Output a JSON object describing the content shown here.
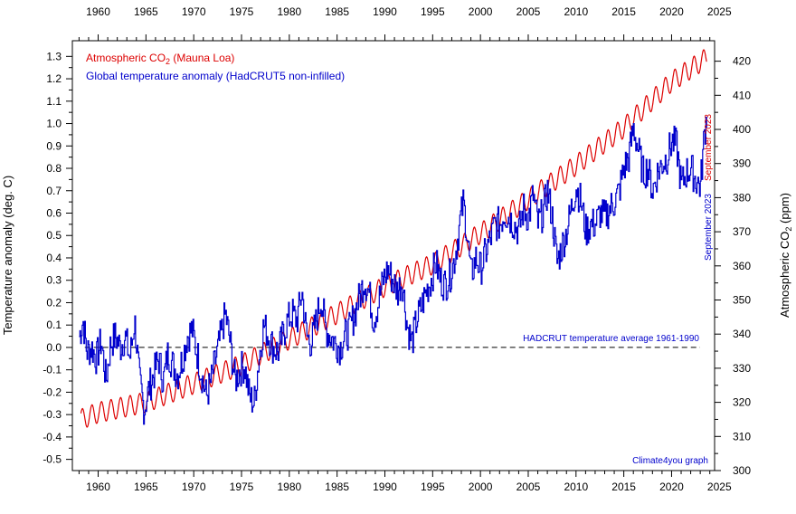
{
  "chart_data": {
    "type": "line",
    "title": "",
    "legend": [
      {
        "label_main": "Atmospheric CO",
        "label_sub": "2",
        "label_tail": " (Mauna Loa)",
        "color": "#dd0000"
      },
      {
        "label_main": "Global temperature anomaly (HadCRUT5 non-infilled)",
        "label_sub": "",
        "label_tail": "",
        "color": "#0000cc"
      }
    ],
    "left_ylabel": "Temperature anomaly (deg. C)",
    "right_ylabel_main": "Atmospheric CO",
    "right_ylabel_sub": "2",
    "right_ylabel_tail": " (ppm)",
    "xlim": [
      1957.3,
      2024.5
    ],
    "left_ylim": [
      -0.55,
      1.37
    ],
    "right_ylim": [
      300,
      426
    ],
    "x_ticks": [
      "1960",
      "1965",
      "1970",
      "1975",
      "1980",
      "1985",
      "1990",
      "1995",
      "2000",
      "2005",
      "2010",
      "2015",
      "2020",
      "2025"
    ],
    "left_ticks": [
      "-0.5",
      "-0.4",
      "-0.3",
      "-0.2",
      "-0.1",
      "0.0",
      "0.1",
      "0.2",
      "0.3",
      "0.4",
      "0.5",
      "0.6",
      "0.7",
      "0.8",
      "0.9",
      "1.0",
      "1.1",
      "1.2",
      "1.3"
    ],
    "right_ticks": [
      "300",
      "310",
      "320",
      "330",
      "340",
      "350",
      "360",
      "370",
      "380",
      "390",
      "400",
      "410",
      "420"
    ],
    "reference_line": {
      "value": 0.0,
      "label": "HADCRUT temperature average 1961-1990",
      "color": "#0000cc"
    },
    "annotations": {
      "co2_date": "September 2023",
      "temp_date": "September 2023",
      "credit": "Climate4you graph"
    },
    "series": [
      {
        "name": "Atmospheric CO2 (Mauna Loa)",
        "color": "#dd0000",
        "axis": "right",
        "seasonal_amplitude": 3.0,
        "x": [
          1958.2,
          1960,
          1965,
          1970,
          1975,
          1980,
          1985,
          1990,
          1995,
          2000,
          2005,
          2010,
          2015,
          2020,
          2023.7
        ],
        "values": [
          315,
          317,
          320,
          325.5,
          331,
          338.5,
          346,
          354,
          360.5,
          369.5,
          379.5,
          389.5,
          400.5,
          414,
          421
        ]
      },
      {
        "name": "Global temperature anomaly (HadCRUT5 non-infilled)",
        "color": "#0000cc",
        "axis": "left",
        "x": [
          1958.0,
          1958.4,
          1958.8,
          1959.3,
          1959.8,
          1960.3,
          1960.8,
          1961.3,
          1961.8,
          1962.3,
          1962.8,
          1963.3,
          1963.8,
          1964.3,
          1964.8,
          1965.3,
          1965.8,
          1966.3,
          1966.8,
          1967.3,
          1967.8,
          1968.3,
          1968.8,
          1969.3,
          1969.8,
          1970.3,
          1970.8,
          1971.3,
          1971.8,
          1972.3,
          1972.8,
          1973.3,
          1973.8,
          1974.3,
          1974.8,
          1975.3,
          1975.8,
          1976.3,
          1976.8,
          1977.3,
          1977.8,
          1978.3,
          1978.8,
          1979.3,
          1979.8,
          1980.3,
          1980.8,
          1981.3,
          1981.8,
          1982.3,
          1982.8,
          1983.3,
          1983.8,
          1984.3,
          1984.8,
          1985.3,
          1985.8,
          1986.3,
          1986.8,
          1987.3,
          1987.8,
          1988.3,
          1988.8,
          1989.3,
          1989.8,
          1990.3,
          1990.8,
          1991.3,
          1991.8,
          1992.3,
          1992.8,
          1993.3,
          1993.8,
          1994.3,
          1994.8,
          1995.3,
          1995.8,
          1996.3,
          1996.8,
          1997.3,
          1997.8,
          1998.2,
          1998.6,
          1999.0,
          1999.5,
          2000.0,
          2000.5,
          2001.0,
          2001.5,
          2002.0,
          2002.5,
          2003.0,
          2003.5,
          2004.0,
          2004.5,
          2005.0,
          2005.5,
          2006.0,
          2006.5,
          2007.0,
          2007.5,
          2008.0,
          2008.5,
          2009.0,
          2009.5,
          2010.0,
          2010.5,
          2011.0,
          2011.5,
          2012.0,
          2012.5,
          2013.0,
          2013.5,
          2014.0,
          2014.5,
          2015.0,
          2015.5,
          2016.0,
          2016.5,
          2017.0,
          2017.5,
          2018.0,
          2018.5,
          2019.0,
          2019.5,
          2020.0,
          2020.5,
          2021.0,
          2021.5,
          2022.0,
          2022.5,
          2023.0,
          2023.4,
          2023.7
        ],
        "values": [
          0.05,
          0.12,
          -0.02,
          0.0,
          -0.05,
          0.03,
          -0.15,
          0.02,
          0.05,
          0.0,
          0.05,
          -0.05,
          0.12,
          -0.15,
          -0.28,
          -0.18,
          -0.12,
          -0.05,
          -0.15,
          -0.02,
          -0.08,
          -0.12,
          -0.05,
          0.05,
          0.08,
          -0.02,
          -0.12,
          -0.22,
          -0.15,
          -0.05,
          0.05,
          0.15,
          0.02,
          -0.15,
          -0.1,
          -0.08,
          -0.22,
          -0.25,
          -0.05,
          0.1,
          0.05,
          0.0,
          -0.02,
          0.05,
          0.12,
          0.15,
          0.12,
          0.25,
          0.05,
          0.02,
          0.12,
          0.22,
          0.08,
          0.05,
          0.02,
          0.0,
          0.05,
          0.08,
          0.15,
          0.22,
          0.3,
          0.25,
          0.12,
          0.2,
          0.3,
          0.35,
          0.3,
          0.25,
          0.3,
          0.1,
          0.02,
          0.12,
          0.18,
          0.25,
          0.3,
          0.38,
          0.3,
          0.28,
          0.32,
          0.4,
          0.55,
          0.65,
          0.5,
          0.32,
          0.4,
          0.35,
          0.42,
          0.48,
          0.55,
          0.55,
          0.6,
          0.58,
          0.55,
          0.52,
          0.62,
          0.58,
          0.68,
          0.55,
          0.6,
          0.7,
          0.58,
          0.38,
          0.45,
          0.52,
          0.62,
          0.72,
          0.65,
          0.52,
          0.55,
          0.55,
          0.6,
          0.58,
          0.62,
          0.65,
          0.7,
          0.8,
          0.85,
          0.98,
          0.88,
          0.78,
          0.8,
          0.7,
          0.78,
          0.82,
          0.85,
          0.92,
          0.9,
          0.72,
          0.78,
          0.8,
          0.75,
          0.72,
          0.95,
          1.05
        ]
      }
    ]
  }
}
